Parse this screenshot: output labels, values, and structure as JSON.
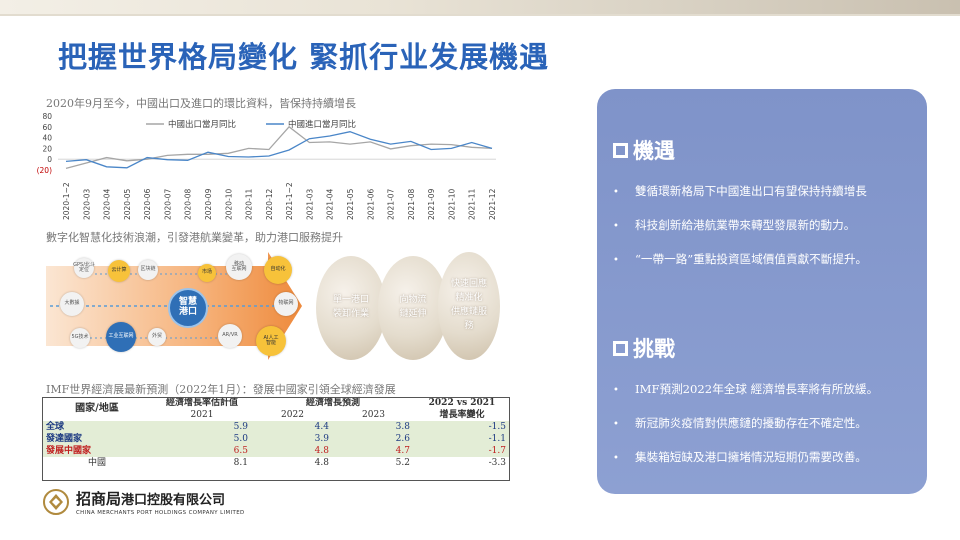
{
  "page_title": "把握世界格局變化 緊抓行业发展機遇",
  "chart_section": {
    "title": "2020年9月至今，中國出口及進口的環比資料，皆保持持續增長"
  },
  "chart_data": {
    "type": "line",
    "title": "",
    "xlabel": "",
    "ylabel": "",
    "ylim": [
      -20,
      80
    ],
    "yticks": [
      "80",
      "60",
      "40",
      "20",
      "0",
      "(20)"
    ],
    "categories": [
      "2020-1~2",
      "2020-03",
      "2020-04",
      "2020-05",
      "2020-06",
      "2020-07",
      "2020-08",
      "2020-09",
      "2020-10",
      "2020-11",
      "2020-12",
      "2021-1~2",
      "2021-03",
      "2021-04",
      "2021-05",
      "2021-06",
      "2021-07",
      "2021-08",
      "2021-09",
      "2021-10",
      "2021-11",
      "2021-12"
    ],
    "series": [
      {
        "name": "中國出口當月同比",
        "color": "#a6a6a6",
        "values": [
          -17,
          -7,
          3,
          -3,
          0,
          7,
          9,
          9,
          11,
          20,
          18,
          60,
          31,
          32,
          28,
          32,
          19,
          25,
          28,
          27,
          22,
          20
        ]
      },
      {
        "name": "中國進口當月同比",
        "color": "#4a86c8",
        "values": [
          -4,
          -1,
          -14,
          -16,
          3,
          -1,
          -2,
          13,
          5,
          4,
          6,
          17,
          38,
          43,
          51,
          37,
          28,
          33,
          18,
          20,
          31,
          20
        ]
      }
    ],
    "legend": "top-center",
    "grid": false
  },
  "diagram_section": {
    "title": "數字化智慧化技術浪潮，引發港航業變革，助力港口服務提升",
    "center": "智慧\n港口",
    "nodes": [
      {
        "label": "GPS/北斗\n定位",
        "color": "#f2f2f2",
        "text": "#555"
      },
      {
        "label": "云计算",
        "color": "#f7c23a",
        "text": "#333"
      },
      {
        "label": "区块链",
        "color": "#f2f2f2",
        "text": "#555"
      },
      {
        "label": "大數據",
        "color": "#f2f2f2",
        "text": "#555"
      },
      {
        "label": "5G技术",
        "color": "#f2f2f2",
        "text": "#555"
      },
      {
        "label": "工业互联网",
        "color": "#2f6fb6",
        "text": "#fff"
      },
      {
        "label": "外贸",
        "color": "#f2f2f2",
        "text": "#555"
      },
      {
        "label": "市场",
        "color": "#f7c23a",
        "text": "#333"
      },
      {
        "label": "移动\n互联网",
        "color": "#f2f2f2",
        "text": "#555"
      },
      {
        "label": "自动化",
        "color": "#f7c23a",
        "text": "#333"
      },
      {
        "label": "物联网",
        "color": "#f2f2f2",
        "text": "#555"
      },
      {
        "label": "AR/VR",
        "color": "#f2f2f2",
        "text": "#555"
      },
      {
        "label": "AI人工\n智能",
        "color": "#f7c23a",
        "text": "#333"
      }
    ],
    "steps": [
      "單一港口\n裝卸作業",
      "向物流\n鏈延伸",
      "快速回應\n精准化\n供應鏈服\n務"
    ]
  },
  "imf_section": {
    "title": "IMF世界經濟展最新預測（2022年1月）：發展中國家引領全球經濟發展",
    "headers": {
      "country": "國家/地區",
      "estimate": "經濟增長率估計值",
      "forecast": "經濟增長預測",
      "change_top": "2022 vs 2021",
      "change_bottom": "增長率變化",
      "y2021": "2021",
      "y2022": "2022",
      "y2023": "2023"
    },
    "rows": [
      {
        "name": "全球",
        "v2021": "5.9",
        "v2022": "4.4",
        "v2023": "3.8",
        "change": "-1.5"
      },
      {
        "name": "發達國家",
        "v2021": "5.0",
        "v2022": "3.9",
        "v2023": "2.6",
        "change": "-1.1"
      },
      {
        "name": "發展中國家",
        "v2021": "6.5",
        "v2022": "4.8",
        "v2023": "4.7",
        "change": "-1.7"
      },
      {
        "name": "中國",
        "v2021": "8.1",
        "v2022": "4.8",
        "v2023": "5.2",
        "change": "-3.3"
      }
    ]
  },
  "logo": {
    "cn_big": "招商局",
    "cn_small": "港口控股有限公司",
    "en": "CHINA MERCHANTS PORT HOLDINGS COMPANY LIMITED"
  },
  "panel": {
    "colors": {
      "bg": "#8698cd"
    },
    "opportunity": {
      "heading": "機遇",
      "items": [
        "雙循環新格局下中國進出口有望保持持續增長",
        "科技創新給港航業帶來轉型發展新的動力。",
        "“一帶一路”重點投資區域價值貢獻不斷提升。"
      ]
    },
    "challenge": {
      "heading": "挑戰",
      "items": [
        "IMF預測2022年全球 經濟增長率將有所放緩。",
        "新冠肺炎疫情對供應鏈的擾動存在不確定性。",
        "集裝箱短缺及港口擁堵情況短期仍需要改善。"
      ]
    }
  }
}
